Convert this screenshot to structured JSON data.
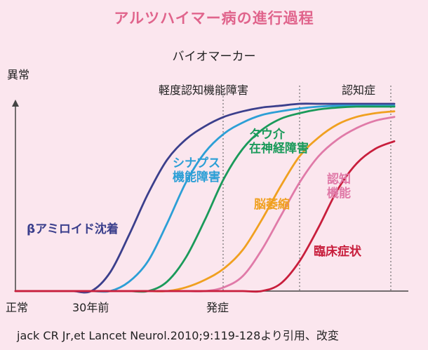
{
  "title": "アルツハイマー病の進行過程",
  "source": "jack CR Jr,et Lancet Neurol.2010;9:119-128より引用、改変",
  "chart_data": {
    "type": "line",
    "title": "アルツハイマー病の進行過程",
    "subtitle": "バイオマーカー",
    "ylabel_top": "異常",
    "ylabel_bottom": "正常",
    "x_ticks": [
      "30年前",
      "発症"
    ],
    "stages": [
      "軽度認知機能障害",
      "認知症"
    ],
    "grid": false,
    "ylim": [
      0,
      100
    ],
    "x": [
      0,
      5,
      10,
      15,
      20,
      25,
      30,
      35,
      40,
      45,
      50,
      55,
      60,
      65,
      70,
      75,
      80,
      85,
      90,
      95,
      100
    ],
    "series": [
      {
        "name": "βアミロイド沈着",
        "color": "#3b3f8c",
        "values": [
          0,
          0,
          0,
          0,
          0,
          10,
          30,
          52,
          70,
          81,
          88,
          93,
          96,
          98,
          99,
          100,
          100,
          100,
          100,
          100,
          100
        ]
      },
      {
        "name": "シナプス機能障害",
        "color": "#2c9fd6",
        "values": [
          0,
          0,
          0,
          0,
          0,
          0,
          5,
          16,
          36,
          58,
          74,
          84,
          90,
          94,
          96,
          97.5,
          98.5,
          99,
          99,
          99,
          99
        ]
      },
      {
        "name": "タウ介在神経障害",
        "color": "#1a9a5a",
        "values": [
          0,
          0,
          0,
          0,
          0,
          0,
          0,
          0,
          5,
          18,
          38,
          60,
          76,
          86,
          92,
          95,
          97,
          98,
          98.5,
          98.5,
          98.5
        ]
      },
      {
        "name": "脳萎縮",
        "color": "#f0a020",
        "values": [
          0,
          0,
          0,
          0,
          0,
          0,
          0,
          0,
          0,
          2,
          6,
          12,
          22,
          38,
          56,
          72,
          82,
          89,
          93,
          95,
          96
        ]
      },
      {
        "name": "認知機能",
        "color": "#e07aa8",
        "values": [
          0,
          0,
          0,
          0,
          0,
          0,
          0,
          0,
          0,
          0,
          0,
          2,
          8,
          22,
          40,
          58,
          72,
          81,
          87,
          91,
          93
        ]
      },
      {
        "name": "臨床症状",
        "color": "#c81e3c",
        "values": [
          0,
          0,
          0,
          0,
          0,
          0,
          0,
          0,
          0,
          0,
          0,
          0,
          0,
          0,
          4,
          16,
          34,
          54,
          68,
          76,
          80
        ]
      }
    ]
  }
}
